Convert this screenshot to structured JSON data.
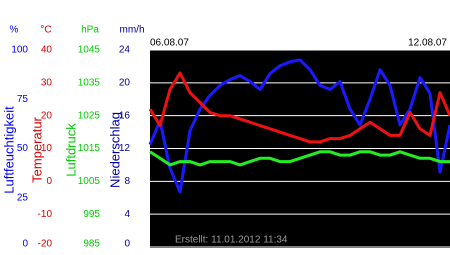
{
  "chart_data": {
    "type": "line",
    "start_label": "06.08.07",
    "end_label": "12.08.07",
    "footer": "Erstellt: 11.01.2012 11:34",
    "grid": true,
    "axes": [
      {
        "unit": "%",
        "label": "Luftfeuchtigkeit",
        "color": "#0000ff",
        "line_color": "#1a1aff",
        "ylim": [
          0,
          100
        ],
        "yticks": [
          100,
          75,
          50,
          25,
          0
        ],
        "values": [
          52,
          64,
          40,
          28,
          59,
          70,
          77,
          82,
          85,
          87,
          84,
          80,
          88,
          92,
          94,
          95,
          90,
          82,
          80,
          84,
          70,
          62,
          75,
          90,
          82,
          62,
          70,
          86,
          78,
          38,
          62
        ]
      },
      {
        "unit": "°C",
        "label": "Temperatur",
        "color": "#dd0000",
        "line_color": "#ee1111",
        "ylim": [
          -20,
          40
        ],
        "yticks": [
          40,
          30,
          20,
          10,
          0,
          -10,
          -20
        ],
        "values": [
          22,
          17,
          28,
          33,
          27,
          24,
          21,
          20,
          20,
          19,
          18,
          17,
          16,
          15,
          14,
          13,
          12,
          12,
          13,
          13,
          14,
          16,
          18,
          16,
          14,
          14,
          21,
          16,
          14,
          27,
          20
        ]
      },
      {
        "unit": "hPa",
        "label": "Luftdruck",
        "color": "#00cc00",
        "line_color": "#22ee22",
        "ylim": [
          985,
          1045
        ],
        "yticks": [
          1045,
          1035,
          1025,
          1015,
          1005,
          995,
          985
        ],
        "values": [
          1014,
          1012,
          1010,
          1011,
          1011,
          1010,
          1011,
          1011,
          1011,
          1010,
          1011,
          1012,
          1012,
          1011,
          1011,
          1012,
          1013,
          1014,
          1014,
          1013,
          1013,
          1014,
          1014,
          1013,
          1013,
          1014,
          1013,
          1012,
          1012,
          1011,
          1011
        ]
      },
      {
        "unit": "mm/h",
        "label": "Niederschlag",
        "color": "#0000a0",
        "ylim": [
          0,
          24
        ],
        "yticks": [
          24,
          20,
          16,
          12,
          8,
          4,
          0
        ]
      }
    ]
  }
}
